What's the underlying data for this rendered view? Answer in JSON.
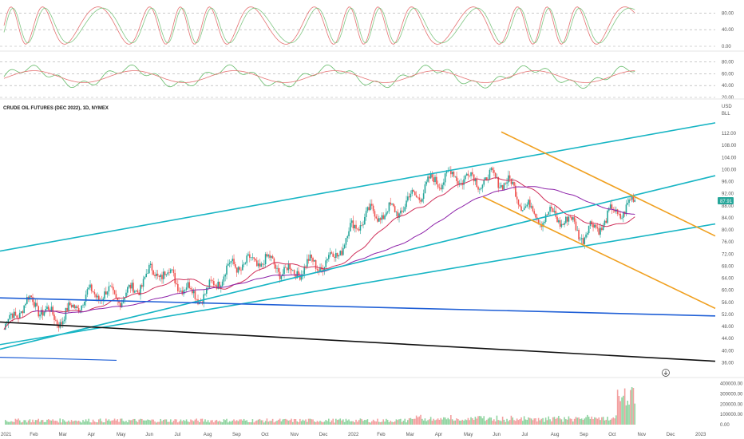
{
  "instrument_title": "CRUDE OIL FUTURES (DEC 2022), 1D, NYMEX",
  "currency_label": "USD",
  "unit_label": "BLL",
  "last_price_label": "87.91",
  "colors": {
    "up_candle": "#26a69a",
    "down_candle": "#ef5350",
    "channel": "#18b5c4",
    "downtrend": "#f0a020",
    "support_blue": "#1f5fd6",
    "longterm_black": "#111111",
    "ma_fast": "#d0305a",
    "ma_slow": "#8e24aa",
    "stoch_k": "#e57373",
    "stoch_d": "#81c784",
    "rsi": "#66bb6a",
    "rsi_ma": "#e57373",
    "price_tag": "#26a69a"
  },
  "chart_data": [
    {
      "type": "line",
      "panel": "stochastic",
      "yticks": [
        "80.00",
        "40.00",
        "0.00"
      ],
      "ylim": [
        0,
        100
      ],
      "series": []
    },
    {
      "type": "line",
      "panel": "rsi",
      "yticks": [
        "80.00",
        "60.00",
        "40.00",
        "20.00"
      ],
      "ylim": [
        20,
        90
      ],
      "series": []
    },
    {
      "type": "candlestick",
      "panel": "price",
      "title": "CRUDE OIL FUTURES (DEC 2022), 1D, NYMEX",
      "yticks": [
        "112.00",
        "108.00",
        "104.00",
        "100.00",
        "96.00",
        "92.00",
        "88.00",
        "84.00",
        "80.00",
        "76.00",
        "72.00",
        "68.00",
        "64.00",
        "60.00",
        "56.00",
        "52.00",
        "48.00",
        "44.00",
        "40.00",
        "36.00"
      ],
      "ylim": [
        34,
        116
      ],
      "xticks": [
        "2021",
        "Feb",
        "Mar",
        "Apr",
        "May",
        "Jun",
        "Jul",
        "Aug",
        "Sep",
        "Oct",
        "Nov",
        "Dec",
        "2022",
        "Feb",
        "Mar",
        "Apr",
        "May",
        "Jun",
        "Jul",
        "Aug",
        "Sep",
        "Oct",
        "Nov",
        "Dec",
        "2023"
      ],
      "monthly_close": [
        {
          "x": "2021-01",
          "y": 47
        },
        {
          "x": "2021-02",
          "y": 55
        },
        {
          "x": "2021-03",
          "y": 53
        },
        {
          "x": "2021-04",
          "y": 56
        },
        {
          "x": "2021-05",
          "y": 60
        },
        {
          "x": "2021-06",
          "y": 64
        },
        {
          "x": "2021-07",
          "y": 63
        },
        {
          "x": "2021-08",
          "y": 60
        },
        {
          "x": "2021-09",
          "y": 66
        },
        {
          "x": "2021-10",
          "y": 73
        },
        {
          "x": "2021-11",
          "y": 63
        },
        {
          "x": "2021-12",
          "y": 70
        },
        {
          "x": "2022-01",
          "y": 80
        },
        {
          "x": "2022-02",
          "y": 84
        },
        {
          "x": "2022-03",
          "y": 92
        },
        {
          "x": "2022-04",
          "y": 94
        },
        {
          "x": "2022-05",
          "y": 100
        },
        {
          "x": "2022-06",
          "y": 96
        },
        {
          "x": "2022-07",
          "y": 88
        },
        {
          "x": "2022-08",
          "y": 86
        },
        {
          "x": "2022-09",
          "y": 76
        },
        {
          "x": "2022-10",
          "y": 88
        }
      ]
    },
    {
      "type": "bar",
      "panel": "volume",
      "yticks": [
        "400000.00",
        "300000.00",
        "200000.00",
        "100000.00",
        "0.00"
      ],
      "ylim": [
        0,
        420000
      ],
      "peak_value": 370000
    }
  ]
}
